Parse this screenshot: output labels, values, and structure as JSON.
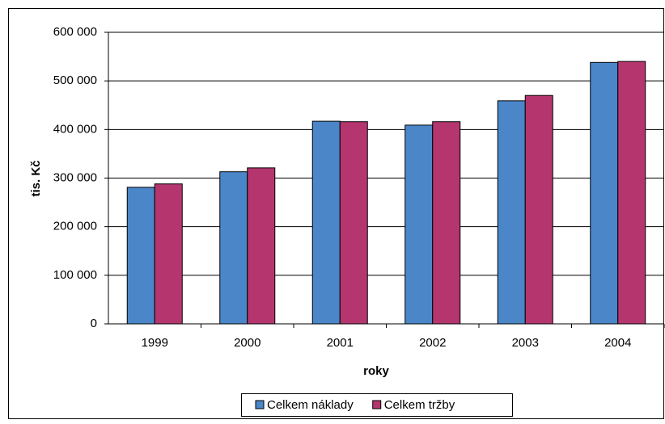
{
  "chart_data": {
    "type": "bar",
    "x_label": "roky",
    "y_label": "tis. Kč",
    "categories": [
      "1999",
      "2000",
      "2001",
      "2002",
      "2003",
      "2004"
    ],
    "series": [
      {
        "name": "Celkem náklady",
        "color": "#4a86c8",
        "values": [
          281000,
          313000,
          417000,
          409000,
          459000,
          538000
        ]
      },
      {
        "name": "Celkem tržby",
        "color": "#b5366f",
        "values": [
          288000,
          321000,
          416000,
          416000,
          470000,
          540000
        ]
      }
    ],
    "ylim": [
      0,
      600000
    ],
    "yticks": [
      0,
      {
        "value": 100000,
        "label": "100 000"
      },
      {
        "value": 200000,
        "label": "200 000"
      },
      {
        "value": 300000,
        "label": "300 000"
      },
      {
        "value": 400000,
        "label": "400 000"
      },
      {
        "value": 500000,
        "label": "500 000"
      },
      {
        "value": 600000,
        "label": "600 000"
      }
    ],
    "grid": true,
    "legend": "bottom"
  }
}
